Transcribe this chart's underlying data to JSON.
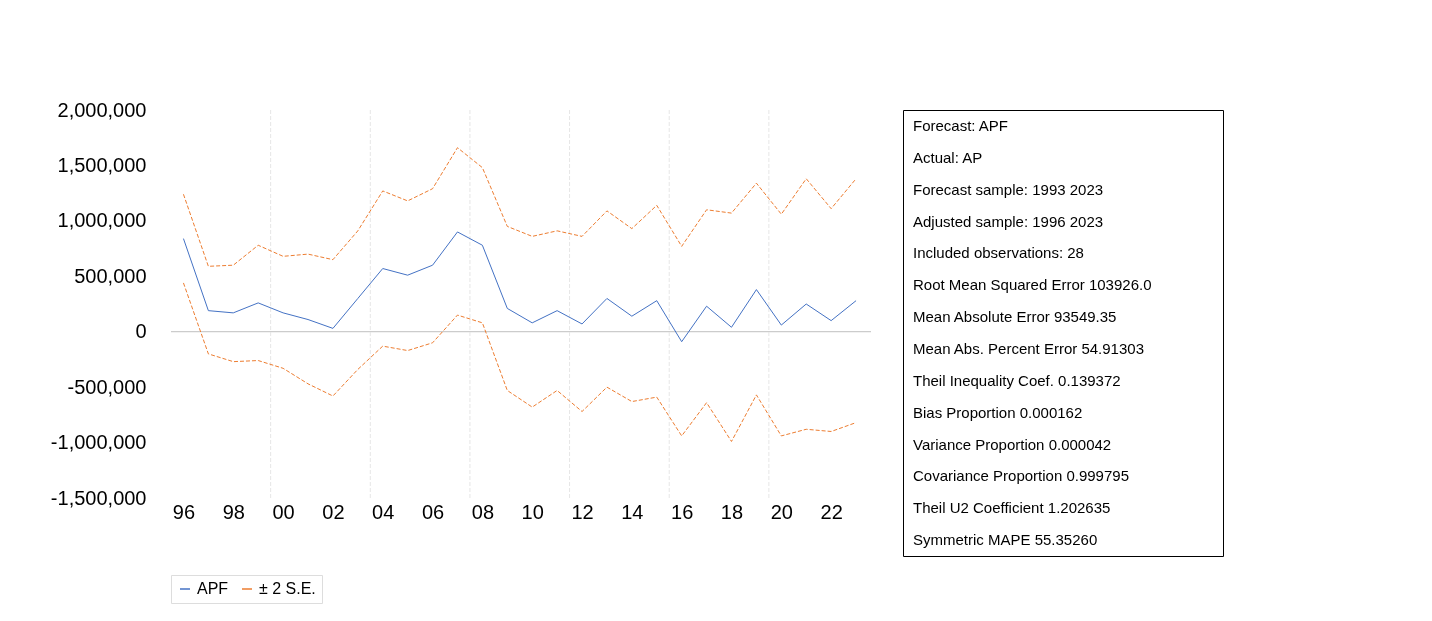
{
  "chart_data": {
    "type": "line",
    "x": [
      1996,
      1997,
      1998,
      1999,
      2000,
      2001,
      2002,
      2003,
      2004,
      2005,
      2006,
      2007,
      2008,
      2009,
      2010,
      2011,
      2012,
      2013,
      2014,
      2015,
      2016,
      2017,
      2018,
      2019,
      2020,
      2021,
      2022,
      2023
    ],
    "series": [
      {
        "name": "APF",
        "color": "#4472c4",
        "line_style": "solid",
        "values": [
          840000,
          190000,
          170000,
          260000,
          170000,
          110000,
          30000,
          300000,
          570000,
          510000,
          600000,
          900000,
          780000,
          210000,
          80000,
          190000,
          70000,
          300000,
          140000,
          280000,
          -90000,
          230000,
          40000,
          380000,
          60000,
          250000,
          100000,
          280000
        ]
      },
      {
        "name": "± 2 S.E.",
        "color": "#ed7d31",
        "line_style": "dashed",
        "values": [
          1240000,
          590000,
          600000,
          780000,
          680000,
          700000,
          650000,
          910000,
          1270000,
          1180000,
          1290000,
          1660000,
          1480000,
          950000,
          860000,
          910000,
          860000,
          1090000,
          930000,
          1140000,
          770000,
          1100000,
          1070000,
          1340000,
          1060000,
          1380000,
          1110000,
          1380000
        ]
      },
      {
        "color": "#ed7d31",
        "line_style": "dashed",
        "values": [
          440000,
          -200000,
          -270000,
          -260000,
          -330000,
          -470000,
          -580000,
          -340000,
          -130000,
          -170000,
          -100000,
          150000,
          80000,
          -530000,
          -680000,
          -530000,
          -720000,
          -500000,
          -630000,
          -590000,
          -940000,
          -640000,
          -990000,
          -570000,
          -940000,
          -880000,
          -900000,
          -820000
        ]
      }
    ],
    "xlim": [
      1995.5,
      2023.6
    ],
    "xticks": [
      {
        "value": 1996,
        "label": "96"
      },
      {
        "value": 1998,
        "label": "98"
      },
      {
        "value": 2000,
        "label": "00"
      },
      {
        "value": 2002,
        "label": "02"
      },
      {
        "value": 2004,
        "label": "04"
      },
      {
        "value": 2006,
        "label": "06"
      },
      {
        "value": 2008,
        "label": "08"
      },
      {
        "value": 2010,
        "label": "10"
      },
      {
        "value": 2012,
        "label": "12"
      },
      {
        "value": 2014,
        "label": "14"
      },
      {
        "value": 2016,
        "label": "16"
      },
      {
        "value": 2018,
        "label": "18"
      },
      {
        "value": 2020,
        "label": "20"
      },
      {
        "value": 2022,
        "label": "22"
      }
    ],
    "ylim": [
      -1500000,
      2000000
    ],
    "yticks": [
      {
        "value": -1500000,
        "label": "-1,500,000"
      },
      {
        "value": -1000000,
        "label": "-1,000,000"
      },
      {
        "value": -500000,
        "label": "-500,000"
      },
      {
        "value": 0,
        "label": "0"
      },
      {
        "value": 500000,
        "label": "500,000"
      },
      {
        "value": 1000000,
        "label": "1,000,000"
      },
      {
        "value": 1500000,
        "label": "1,500,000"
      },
      {
        "value": 2000000,
        "label": "2,000,000"
      }
    ],
    "grid": false,
    "legend": "bottom",
    "ref_lines": [
      {
        "axis": "y",
        "value": 0,
        "color": "#bfbfbf",
        "line_style": "solid"
      },
      {
        "axis": "x",
        "value": 1999.5,
        "color": "#e6e6e6",
        "line_style": "dashed"
      },
      {
        "axis": "x",
        "value": 2003.5,
        "color": "#e6e6e6",
        "line_style": "dashed"
      },
      {
        "axis": "x",
        "value": 2007.5,
        "color": "#e6e6e6",
        "line_style": "dashed"
      },
      {
        "axis": "x",
        "value": 2011.5,
        "color": "#e6e6e6",
        "line_style": "dashed"
      },
      {
        "axis": "x",
        "value": 2015.5,
        "color": "#e6e6e6",
        "line_style": "dashed"
      },
      {
        "axis": "x",
        "value": 2019.5,
        "color": "#e6e6e6",
        "line_style": "dashed"
      }
    ],
    "annotations": [
      "Forecast: APF",
      "Actual: AP",
      "Forecast sample: 1993 2023",
      "Adjusted sample: 1996 2023",
      "Included observations: 28",
      "Root Mean Squared Error    103926.0",
      "Mean Absolute Error    93549.35",
      "Mean Abs. Percent Error    54.91303",
      "Theil Inequality Coef.    0.139372",
      "Bias Proportion    0.000162",
      "Variance Proportion    0.000042",
      "Covariance Proportion    0.999795",
      "Theil U2 Coefficient    1.202635",
      "Symmetric MAPE    55.35260"
    ]
  }
}
